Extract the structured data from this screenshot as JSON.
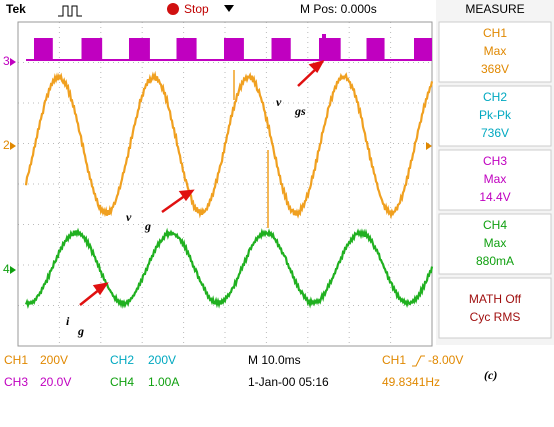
{
  "header": {
    "brand": "Tek",
    "status": "Stop",
    "position": "M Pos: 0.000s"
  },
  "measure": {
    "title": "MEASURE",
    "items": [
      {
        "channel": "CH1",
        "type": "Max",
        "value": "368V"
      },
      {
        "channel": "CH2",
        "type": "Pk-Pk",
        "value": "736V"
      },
      {
        "channel": "CH3",
        "type": "Max",
        "value": "14.4V"
      },
      {
        "channel": "CH4",
        "type": "Max",
        "value": "880mA"
      }
    ],
    "math": {
      "line1": "MATH Off",
      "line2": "Cyc RMS"
    }
  },
  "markers": [
    "3",
    "2",
    "4"
  ],
  "annotations": [
    {
      "main": "v",
      "sub": "gs"
    },
    {
      "main": "v",
      "sub": "g"
    },
    {
      "main": "i",
      "sub": "g"
    }
  ],
  "footer": {
    "ch1": {
      "label": "CH1",
      "scale": "200V"
    },
    "ch2": {
      "label": "CH2",
      "scale": "200V"
    },
    "ch3": {
      "label": "CH3",
      "scale": "20.0V"
    },
    "ch4": {
      "label": "CH4",
      "scale": "1.00A"
    },
    "timebase": "M 10.0ms",
    "date": "1-Jan-00 05:16",
    "trigger": {
      "source": "CH1",
      "level": "-8.00V"
    },
    "frequency": "49.8341Hz"
  },
  "panel_label": "(c)"
}
